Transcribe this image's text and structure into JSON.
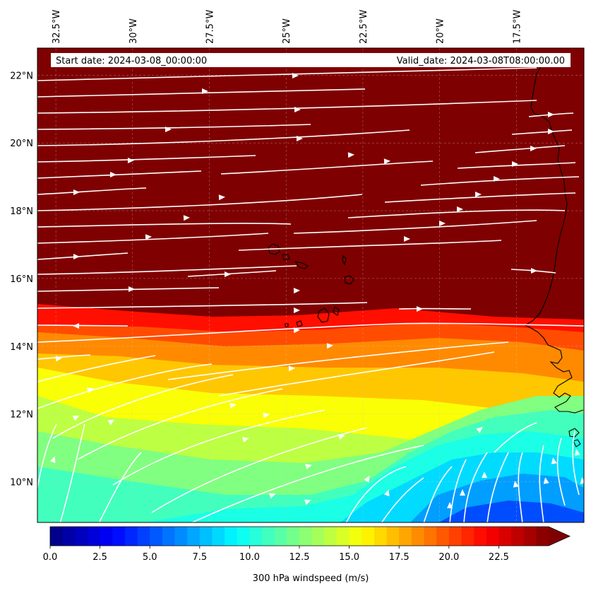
{
  "info": {
    "start_date": "Start date: 2024-03-08_00:00:00",
    "valid_date": "Valid_date: 2024-03-08T08:00:00.00"
  },
  "map": {
    "lon_range": [
      -33.1,
      -15.3
    ],
    "lat_range": [
      8.8,
      22.8
    ],
    "lon_ticks": [
      {
        "value": -32.5,
        "label": "32.5°W"
      },
      {
        "value": -30.0,
        "label": "30°W"
      },
      {
        "value": -27.5,
        "label": "27.5°W"
      },
      {
        "value": -25.0,
        "label": "25°W"
      },
      {
        "value": -22.5,
        "label": "22.5°W"
      },
      {
        "value": -20.0,
        "label": "20°W"
      },
      {
        "value": -17.5,
        "label": "17.5°W"
      }
    ],
    "lat_ticks": [
      {
        "value": 10,
        "label": "10°N"
      },
      {
        "value": 12,
        "label": "12°N"
      },
      {
        "value": 14,
        "label": "14°N"
      },
      {
        "value": 16,
        "label": "16°N"
      },
      {
        "value": 18,
        "label": "18°N"
      },
      {
        "value": 20,
        "label": "20°N"
      },
      {
        "value": 22,
        "label": "22°N"
      }
    ],
    "gridlines": true,
    "colormap": "jet",
    "field_max_color": "#7f0000",
    "streamline_color": "#ffffff",
    "coastline_color": "#000000"
  },
  "colorbar": {
    "label": "300 hPa windspeed (m/s)",
    "vmin": 0,
    "vmax": 25,
    "extend": "max",
    "ticks": [
      {
        "value": 0.0,
        "label": "0.0"
      },
      {
        "value": 2.5,
        "label": "2.5"
      },
      {
        "value": 5.0,
        "label": "5.0"
      },
      {
        "value": 7.5,
        "label": "7.5"
      },
      {
        "value": 10.0,
        "label": "10.0"
      },
      {
        "value": 12.5,
        "label": "12.5"
      },
      {
        "value": 15.0,
        "label": "15.0"
      },
      {
        "value": 17.5,
        "label": "17.5"
      },
      {
        "value": 20.0,
        "label": "20.0"
      },
      {
        "value": 22.5,
        "label": "22.5"
      }
    ]
  }
}
